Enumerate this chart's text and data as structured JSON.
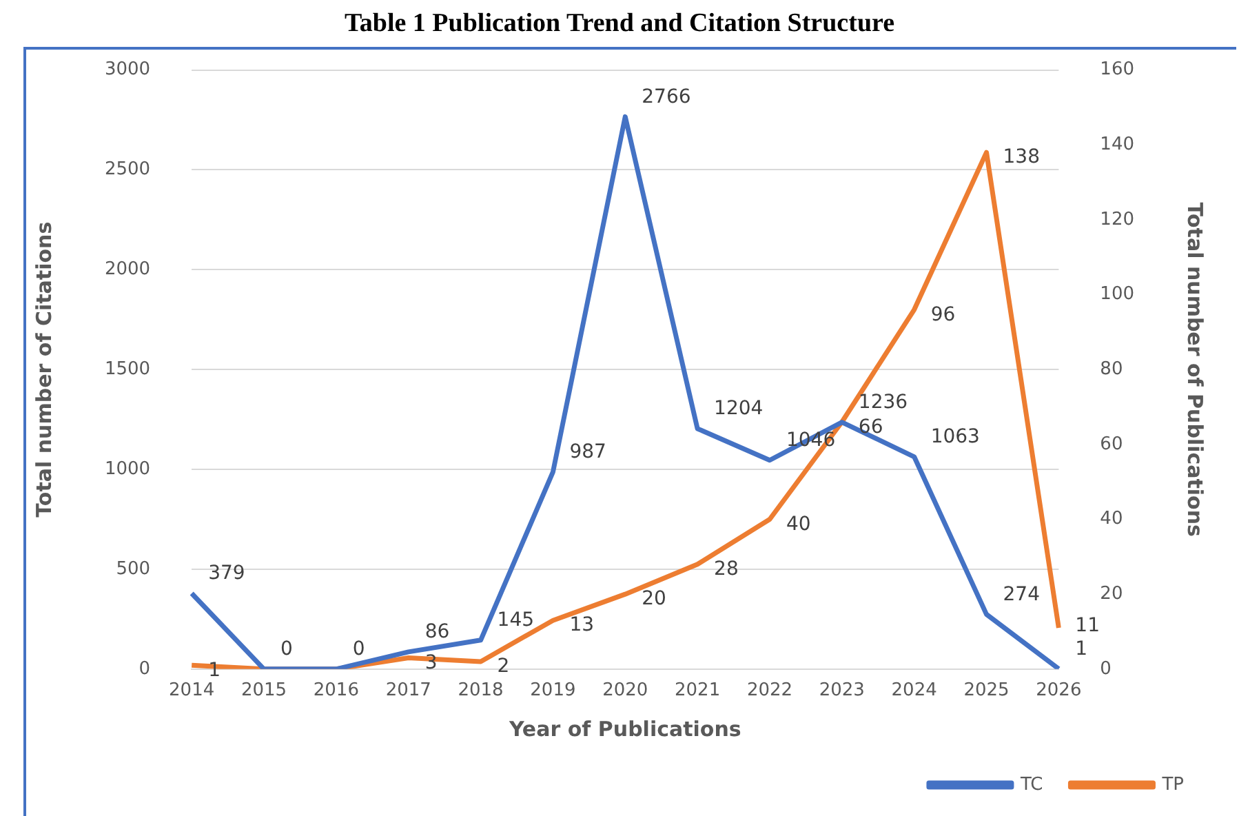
{
  "chart_data": {
    "type": "line",
    "title": "Table 1 Publication Trend and Citation Structure",
    "xlabel": "Year of Publications",
    "ylabel": "Total number of Citations",
    "y2label": "Total number of Publications",
    "categories": [
      "2014",
      "2015",
      "2016",
      "2017",
      "2018",
      "2019",
      "2020",
      "2021",
      "2022",
      "2023",
      "2024",
      "2025",
      "2026"
    ],
    "series": [
      {
        "name": "TC",
        "color": "#4472c4",
        "values": [
          379,
          0,
          0,
          86,
          145,
          987,
          2766,
          1204,
          1046,
          1236,
          1063,
          274,
          1
        ],
        "value_labels": [
          "379",
          "0",
          "0",
          "86",
          "145",
          "987",
          "2766",
          "1204",
          "1046",
          "1236",
          "1063",
          "274",
          "1"
        ]
      },
      {
        "name": "TP",
        "color": "#ed7d31",
        "axis": "y2",
        "values": [
          1,
          0,
          0,
          3,
          2,
          13,
          20,
          28,
          40,
          66,
          96,
          138,
          11
        ],
        "value_labels": [
          "1",
          null,
          null,
          "3",
          "2",
          "13",
          "20",
          "28",
          "40",
          "66",
          "96",
          "138",
          "11"
        ]
      }
    ],
    "ylim": [
      0,
      3000
    ],
    "yticks": [
      0,
      500,
      1000,
      1500,
      2000,
      2500,
      3000
    ],
    "y2lim": [
      0,
      160
    ],
    "y2ticks": [
      0,
      20,
      40,
      60,
      80,
      100,
      120,
      140,
      160
    ],
    "grid": "y",
    "legend": "bottom right",
    "marker": "none",
    "line_style": "solid"
  }
}
